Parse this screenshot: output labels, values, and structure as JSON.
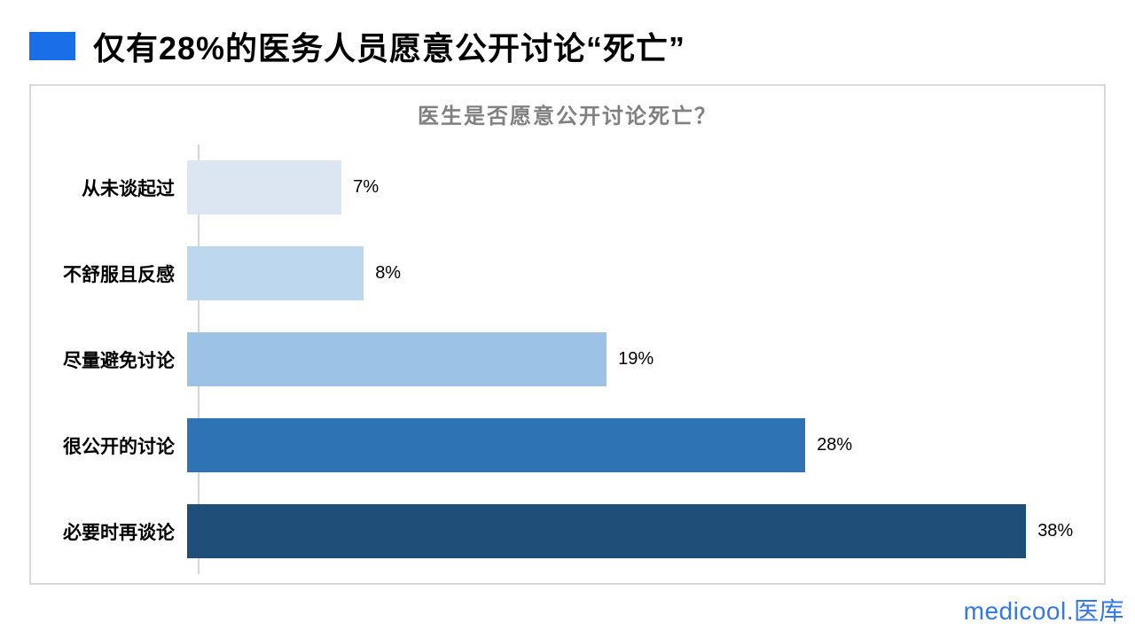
{
  "header": {
    "title": "仅有28%的医务人员愿意公开讨论“死亡”",
    "bullet_color": "#1a6ee8"
  },
  "chart": {
    "title": "医生是否愿意公开讨论死亡？",
    "title_color": "#808080",
    "border_color": "#d9d9d9",
    "axis_color": "#d6d6d6"
  },
  "chart_data": {
    "type": "bar",
    "orientation": "horizontal",
    "title": "医生是否愿意公开讨论死亡？",
    "categories": [
      "从未谈起过",
      "不舒服且反感",
      "尽量避免讨论",
      "很公开的讨论",
      "必要时再谈论"
    ],
    "values": [
      7,
      8,
      19,
      28,
      38
    ],
    "value_labels": [
      "7%",
      "8%",
      "19%",
      "28%",
      "38%"
    ],
    "bar_colors": [
      "#dce6f2",
      "#bdd7ee",
      "#9cc3e6",
      "#2e74b5",
      "#1f4e79"
    ],
    "xlabel": "",
    "ylabel": "",
    "xlim": [
      0,
      40
    ],
    "grid": false,
    "legend": false,
    "data_labels": true
  },
  "footer": {
    "logo_text": "medicool.医库",
    "logo_color": "#3478e8"
  }
}
